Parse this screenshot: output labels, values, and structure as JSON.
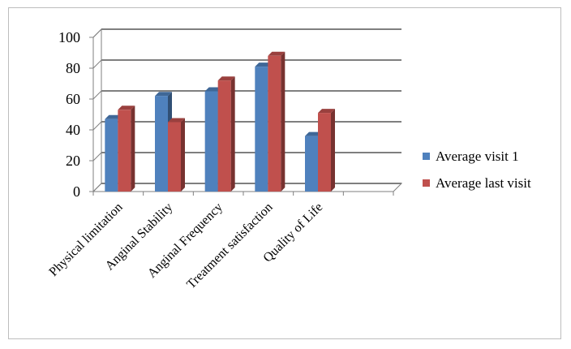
{
  "chart_data": {
    "type": "bar",
    "style": "3d-clustered-column",
    "categories": [
      "Physical limitation",
      "Anginal Stability",
      "Anginal Frequency",
      "Treatment satisfaction",
      "Quality of Life"
    ],
    "series": [
      {
        "name": "Average visit 1",
        "values": [
          47,
          62,
          65,
          81,
          36
        ],
        "color": "#4f81bd"
      },
      {
        "name": "Average last visit",
        "values": [
          53,
          45,
          72,
          88,
          51
        ],
        "color": "#c0504d"
      }
    ],
    "yticks": [
      0,
      20,
      40,
      60,
      80,
      100
    ],
    "ylim": [
      0,
      100
    ],
    "grid": true,
    "legend_position": "right"
  }
}
